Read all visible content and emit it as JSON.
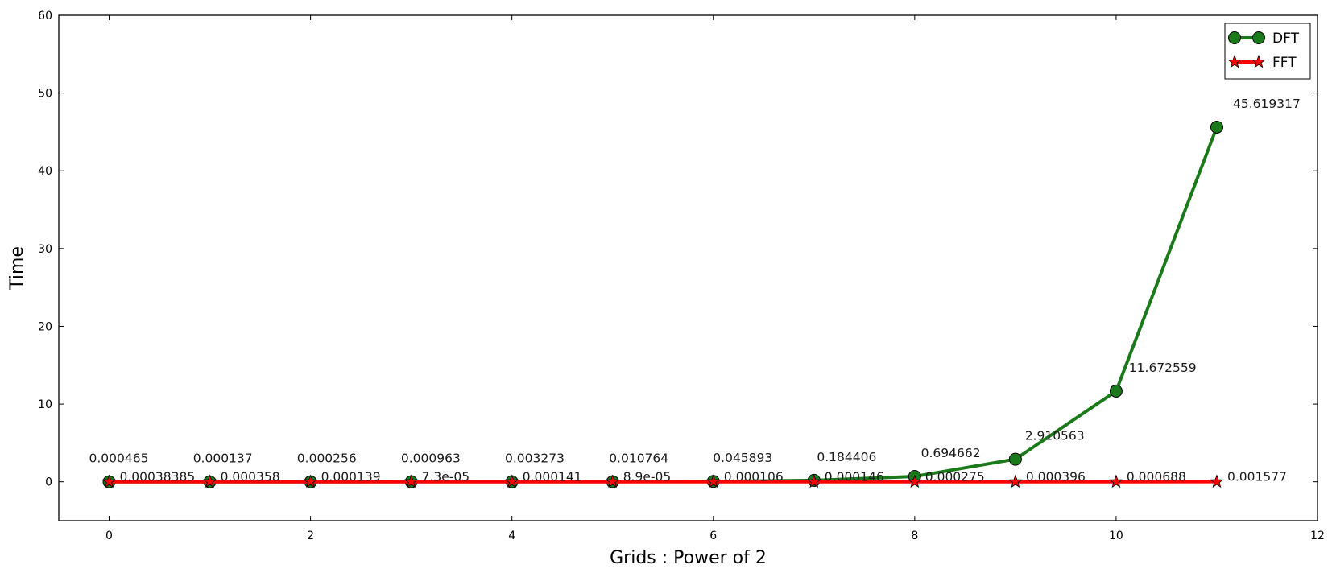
{
  "chart_data": {
    "type": "line",
    "title": "",
    "xlabel": "Grids : Power of 2",
    "ylabel": "Time",
    "xlim": [
      -0.5,
      12
    ],
    "ylim": [
      -5,
      60
    ],
    "xticks": [
      0,
      2,
      4,
      6,
      8,
      10,
      12
    ],
    "yticks": [
      0,
      10,
      20,
      30,
      40,
      50,
      60
    ],
    "grid": false,
    "legend_position": "top-right",
    "x": [
      0,
      1,
      2,
      3,
      4,
      5,
      6,
      7,
      8,
      9,
      10,
      11
    ],
    "series": [
      {
        "name": "DFT",
        "color": "#1a7a1a",
        "marker": "circle",
        "values": [
          0.000465,
          0.000137,
          0.000256,
          0.000963,
          0.003273,
          0.010764,
          0.045893,
          0.184406,
          0.694662,
          2.910563,
          11.672559,
          45.619317
        ],
        "labels": [
          "0.000465",
          "0.000137",
          "0.000256",
          "0.000963",
          "0.003273",
          "0.010764",
          "0.045893",
          "0.184406",
          "0.694662",
          "2.910563",
          "11.672559",
          "45.619317"
        ]
      },
      {
        "name": "FFT",
        "color": "#ff0000",
        "marker": "star",
        "values": [
          0.00038385,
          0.000358,
          0.000139,
          7.3e-05,
          0.000141,
          8.9e-05,
          0.000106,
          0.000146,
          0.000275,
          0.000396,
          0.000688,
          0.001577
        ],
        "labels": [
          "0.00038385",
          "0.000358",
          "0.000139",
          "7.3e-05",
          "0.000141",
          "8.9e-05",
          "0.000106",
          "0.000146",
          "0.000275",
          "0.000396",
          "0.000688",
          "0.001577"
        ]
      }
    ]
  }
}
